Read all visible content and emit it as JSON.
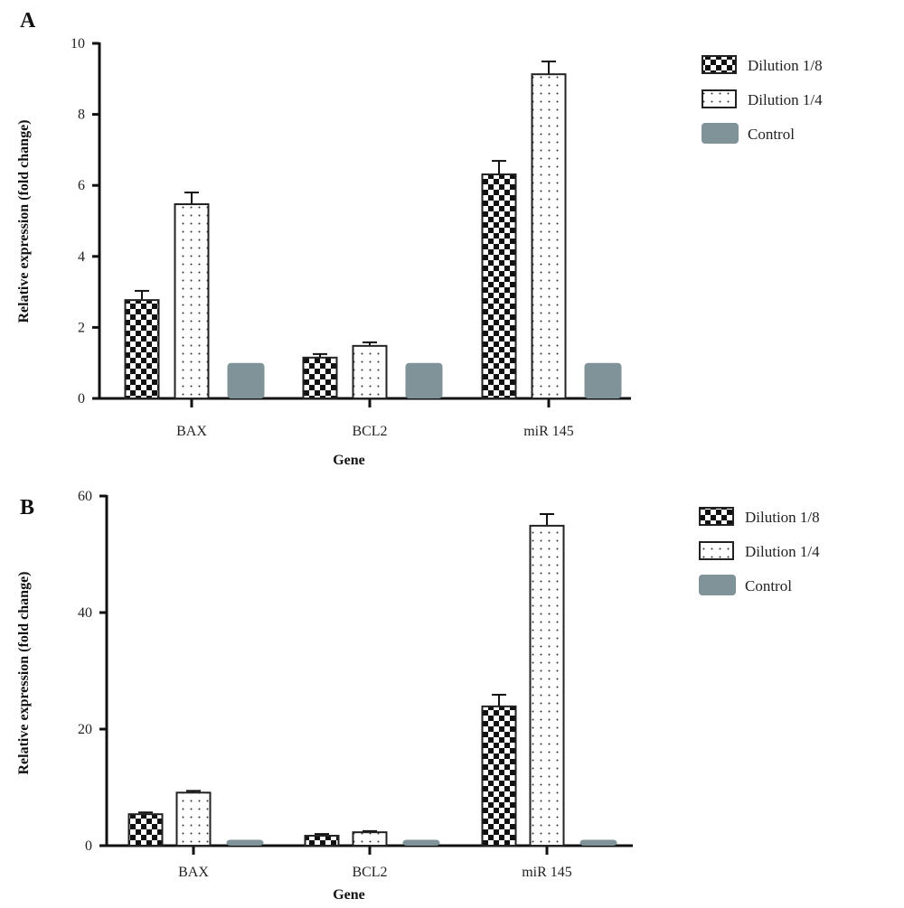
{
  "colors": {
    "axis": "#111111",
    "checker": "#111111",
    "dots": "#333333",
    "control": "#7f9398"
  },
  "chart_data": [
    {
      "panel": "A",
      "type": "bar",
      "title": "",
      "xlabel": "Gene",
      "ylabel": "Relative expression (fold change)",
      "ylim": [
        0,
        10
      ],
      "yticks": [
        0,
        2,
        4,
        6,
        8,
        10
      ],
      "categories": [
        "BAX",
        "BCL2",
        "miR 145"
      ],
      "legend_position": "top-right",
      "series": [
        {
          "name": "Dilution 1/8",
          "pattern": "checker",
          "values": [
            2.77,
            1.15,
            6.31
          ],
          "errors": [
            0.26,
            0.1,
            0.38
          ]
        },
        {
          "name": "Dilution 1/4",
          "pattern": "dots",
          "values": [
            5.47,
            1.48,
            9.13
          ],
          "errors": [
            0.33,
            0.1,
            0.36
          ]
        },
        {
          "name": "Control",
          "pattern": "solid",
          "values": [
            1.0,
            1.0,
            1.0
          ],
          "errors": [
            0,
            0,
            0
          ]
        }
      ]
    },
    {
      "panel": "B",
      "type": "bar",
      "title": "",
      "xlabel": "Gene",
      "ylabel": "Relative expression (fold change)",
      "ylim": [
        0,
        60
      ],
      "yticks": [
        0,
        20,
        40,
        60
      ],
      "categories": [
        "BAX",
        "BCL2",
        "miR 145"
      ],
      "legend_position": "top-right",
      "series": [
        {
          "name": "Dilution 1/8",
          "pattern": "checker",
          "values": [
            5.4,
            1.7,
            23.9
          ],
          "errors": [
            0.3,
            0.3,
            2.0
          ]
        },
        {
          "name": "Dilution 1/4",
          "pattern": "dots",
          "values": [
            9.1,
            2.3,
            54.9
          ],
          "errors": [
            0.3,
            0.2,
            2.0
          ]
        },
        {
          "name": "Control",
          "pattern": "solid",
          "values": [
            1.0,
            1.0,
            1.0
          ],
          "errors": [
            0,
            0,
            0
          ]
        }
      ]
    }
  ]
}
